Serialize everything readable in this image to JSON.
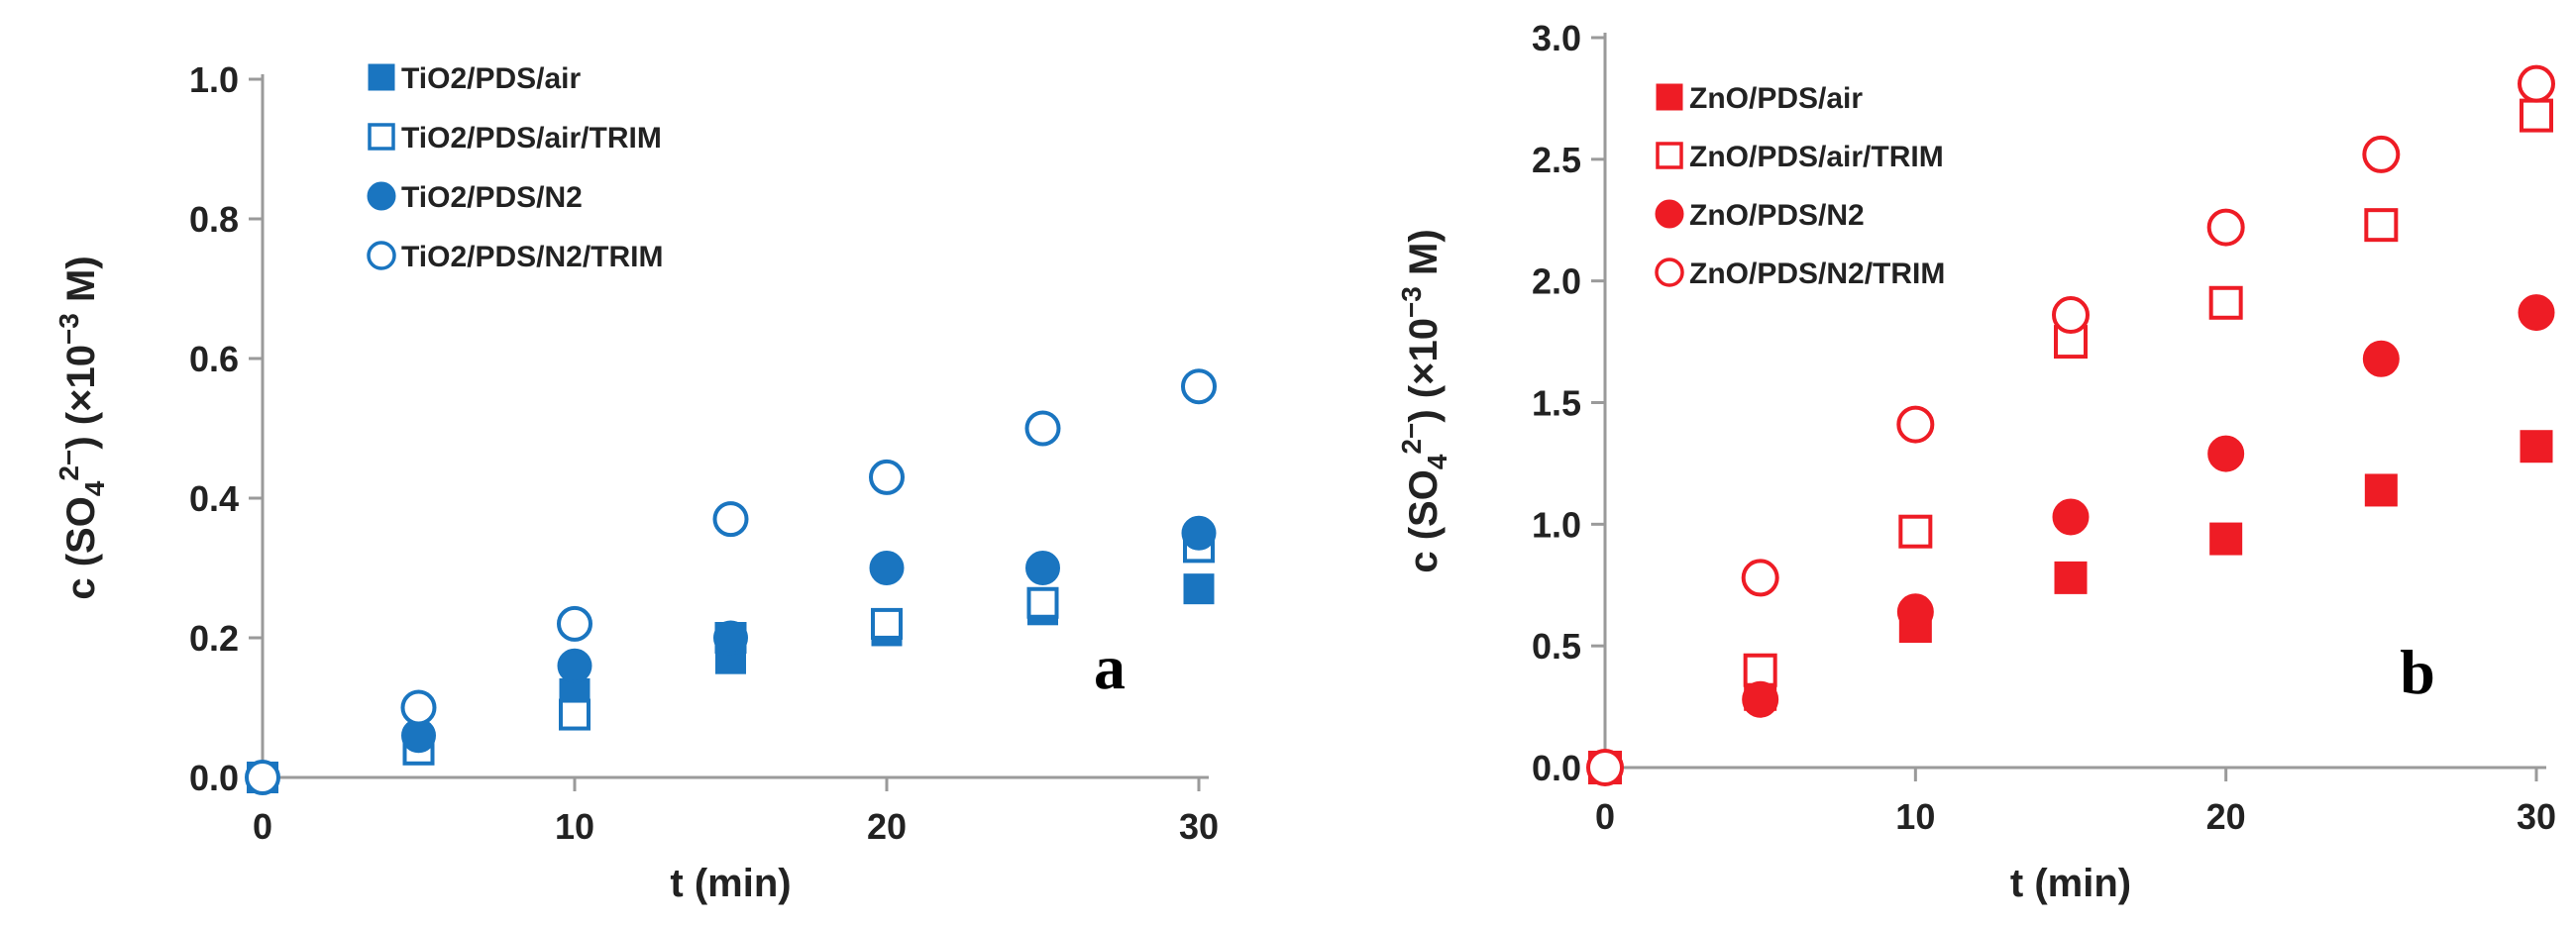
{
  "chart_data": [
    {
      "type": "scatter",
      "panel_label": "a",
      "color": "#1a75c0",
      "xlabel": "t (min)",
      "ylabel": "c (SO4²⁻) (×10⁻³ M)",
      "ylabel_parts": {
        "pre": "c (SO",
        "sub": "4",
        "sup": "2−",
        "post": ") (×10",
        "sup2": "−3",
        "post2": " M)"
      },
      "xlim": [
        0,
        30
      ],
      "ylim": [
        0,
        1.0
      ],
      "xticks": [
        0,
        10,
        20,
        30
      ],
      "yticks": [
        0.0,
        0.2,
        0.4,
        0.6,
        0.8,
        1.0
      ],
      "xtick_labels": [
        "0",
        "10",
        "20",
        "30"
      ],
      "ytick_labels": [
        "0.0",
        "0.2",
        "0.4",
        "0.6",
        "0.8",
        "1.0"
      ],
      "x": [
        0,
        5,
        10,
        15,
        20,
        25,
        30
      ],
      "series": [
        {
          "name": "TiO2/PDS/air",
          "marker": "square",
          "filled": true,
          "values": [
            0.0,
            0.05,
            0.12,
            0.17,
            0.21,
            0.24,
            0.27
          ]
        },
        {
          "name": "TiO2/PDS/air/TRIM",
          "marker": "square",
          "filled": false,
          "values": [
            0.0,
            0.04,
            0.09,
            0.2,
            0.22,
            0.25,
            0.33
          ]
        },
        {
          "name": "TiO2/PDS/N2",
          "marker": "circle",
          "filled": true,
          "values": [
            0.0,
            0.06,
            0.16,
            0.2,
            0.3,
            0.3,
            0.35
          ]
        },
        {
          "name": "TiO2/PDS/N2/TRIM",
          "marker": "circle",
          "filled": false,
          "values": [
            0.0,
            0.1,
            0.22,
            0.37,
            0.43,
            0.5,
            0.56
          ]
        }
      ]
    },
    {
      "type": "scatter",
      "panel_label": "b",
      "color": "#ee1c25",
      "xlabel": "t (min)",
      "ylabel": "c (SO4²⁻) (×10⁻³ M)",
      "ylabel_parts": {
        "pre": "c (SO",
        "sub": "4",
        "sup": "2−",
        "post": ") (×10",
        "sup2": "−3",
        "post2": " M)"
      },
      "xlim": [
        0,
        30
      ],
      "ylim": [
        0,
        3.0
      ],
      "xticks": [
        0,
        10,
        20,
        30
      ],
      "yticks": [
        0.0,
        0.5,
        1.0,
        1.5,
        2.0,
        2.5,
        3.0
      ],
      "xtick_labels": [
        "0",
        "10",
        "20",
        "30"
      ],
      "ytick_labels": [
        "0.0",
        "0.5",
        "1.0",
        "1.5",
        "2.0",
        "2.5",
        "3.0"
      ],
      "x": [
        0,
        5,
        10,
        15,
        20,
        25,
        30
      ],
      "series": [
        {
          "name": "ZnO/PDS/air",
          "marker": "square",
          "filled": true,
          "values": [
            0.0,
            0.3,
            0.58,
            0.78,
            0.94,
            1.14,
            1.32
          ]
        },
        {
          "name": "ZnO/PDS/air/TRIM",
          "marker": "square",
          "filled": false,
          "values": [
            0.0,
            0.4,
            0.97,
            1.75,
            1.91,
            2.23,
            2.68
          ]
        },
        {
          "name": "ZnO/PDS/N2",
          "marker": "circle",
          "filled": true,
          "values": [
            0.0,
            0.28,
            0.64,
            1.03,
            1.29,
            1.68,
            1.87
          ]
        },
        {
          "name": "ZnO/PDS/N2/TRIM",
          "marker": "circle",
          "filled": false,
          "values": [
            0.0,
            0.78,
            1.41,
            1.86,
            2.22,
            2.52,
            2.81
          ]
        }
      ]
    }
  ]
}
